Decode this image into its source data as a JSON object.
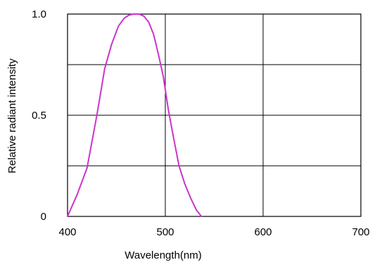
{
  "chart_data": {
    "type": "line",
    "title": "",
    "xlabel": "Wavelength(nm)",
    "ylabel": "Relative radiant intensity",
    "xlim": [
      400,
      700
    ],
    "ylim": [
      0,
      1.0
    ],
    "x_ticks": [
      400,
      500,
      600,
      700
    ],
    "x_tick_labels": [
      "400",
      "500",
      "600",
      "700"
    ],
    "y_ticks": [
      0,
      0.5,
      1.0
    ],
    "y_tick_labels": [
      "0",
      "0.5",
      "1.0"
    ],
    "x_grid": [
      500,
      600
    ],
    "y_grid": [
      0.25,
      0.5,
      0.75
    ],
    "grid": true,
    "legend": "none",
    "series": [
      {
        "color": "#cc33cc",
        "x": [
          400,
          410,
          420,
          430,
          438,
          445,
          452,
          458,
          463,
          468,
          473,
          478,
          483,
          488,
          493,
          498,
          503,
          508,
          514,
          520,
          526,
          532,
          537
        ],
        "y": [
          0.0,
          0.11,
          0.24,
          0.5,
          0.73,
          0.85,
          0.94,
          0.98,
          0.995,
          1.0,
          1.0,
          0.99,
          0.96,
          0.9,
          0.8,
          0.69,
          0.53,
          0.4,
          0.25,
          0.16,
          0.09,
          0.03,
          0.0
        ]
      }
    ]
  }
}
